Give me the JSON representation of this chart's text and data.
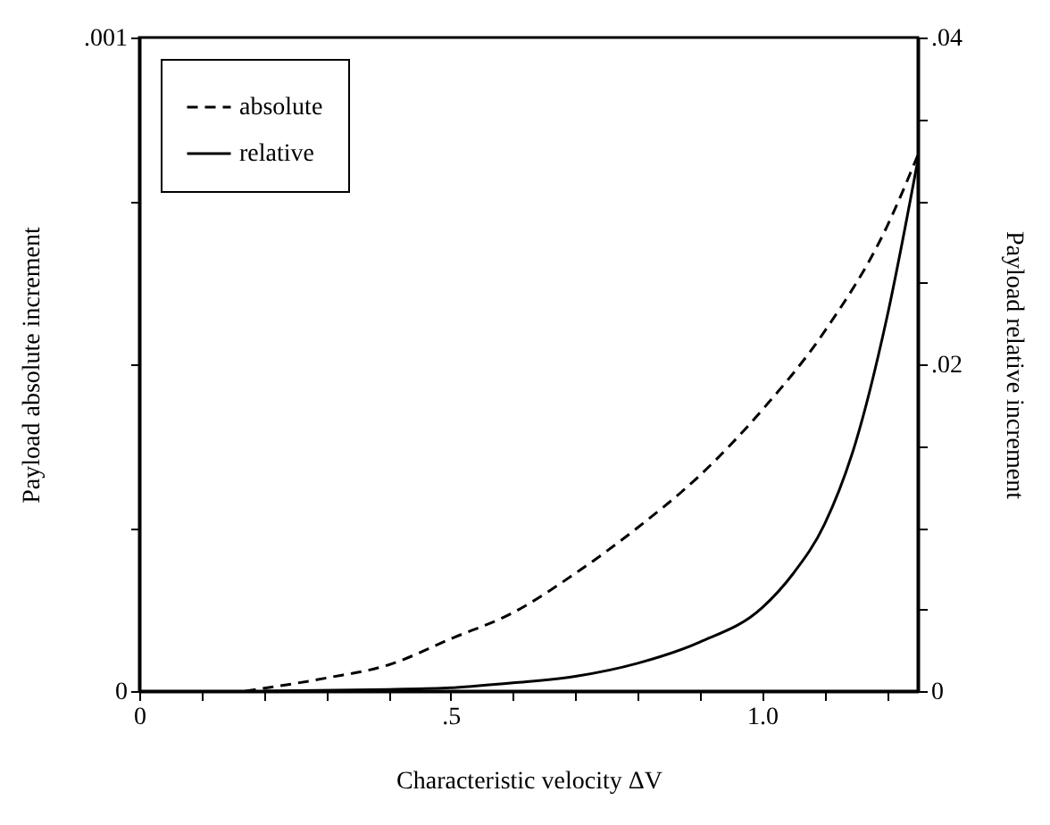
{
  "chart_data": {
    "type": "line",
    "xlabel": "Characteristic velocity  ΔV",
    "ylabel": "Payload absolute increment",
    "y2label": "Payload relative increment",
    "xlim": [
      0,
      1.25
    ],
    "xticks": [
      0,
      {
        "value": 0.1,
        "label": null
      },
      {
        "value": 0.2,
        "label": null
      },
      {
        "value": 0.3,
        "label": null
      },
      {
        "value": 0.4,
        "label": null
      },
      {
        "value": 0.5,
        "label": ".5"
      },
      {
        "value": 0.6,
        "label": null
      },
      {
        "value": 0.7,
        "label": null
      },
      {
        "value": 0.8,
        "label": null
      },
      {
        "value": 0.9,
        "label": null
      },
      {
        "value": 1.0,
        "label": "1.0"
      },
      {
        "value": 1.1,
        "label": null
      },
      {
        "value": 1.2,
        "label": null
      }
    ],
    "ylim": [
      0,
      0.001
    ],
    "yticks": [
      0,
      {
        "value": 0.00025,
        "label": null
      },
      {
        "value": 0.0005,
        "label": null
      },
      {
        "value": 0.00075,
        "label": null
      },
      {
        "value": 0.001,
        "label": ".001"
      }
    ],
    "y2lim": [
      0,
      0.04
    ],
    "y2ticks": [
      0,
      {
        "value": 0.005,
        "label": null
      },
      {
        "value": 0.01,
        "label": null
      },
      {
        "value": 0.015,
        "label": null
      },
      {
        "value": 0.02,
        "label": ".02"
      },
      {
        "value": 0.025,
        "label": null
      },
      {
        "value": 0.03,
        "label": null
      },
      {
        "value": 0.035,
        "label": null
      },
      {
        "value": 0.04,
        "label": ".04"
      }
    ],
    "grid": false,
    "legend": "top left",
    "series": [
      {
        "name": "absolute",
        "color": "#000000",
        "line_style": "dashed",
        "x": [
          0.17,
          0.3,
          0.4,
          0.5,
          0.6,
          0.7,
          0.8,
          0.9,
          1.0,
          1.1,
          1.2,
          1.25
        ],
        "values": [
          0,
          2e-05,
          4e-05,
          8e-05,
          0.00012,
          0.00018,
          0.00025,
          0.00033,
          0.00043,
          0.00055,
          0.00071,
          0.00082
        ]
      },
      {
        "name": "relative",
        "color": "#000000",
        "line_style": "solid",
        "axis": "y2",
        "x": [
          0.2,
          0.4,
          0.5,
          0.6,
          0.7,
          0.8,
          0.9,
          1.0,
          1.05,
          1.1,
          1.15,
          1.2,
          1.25
        ],
        "values": [
          0,
          0.0001,
          0.0002,
          0.0005,
          0.0009,
          0.0017,
          0.003,
          0.0051,
          0.0072,
          0.0102,
          0.0152,
          0.0228,
          0.0325
        ]
      }
    ]
  }
}
